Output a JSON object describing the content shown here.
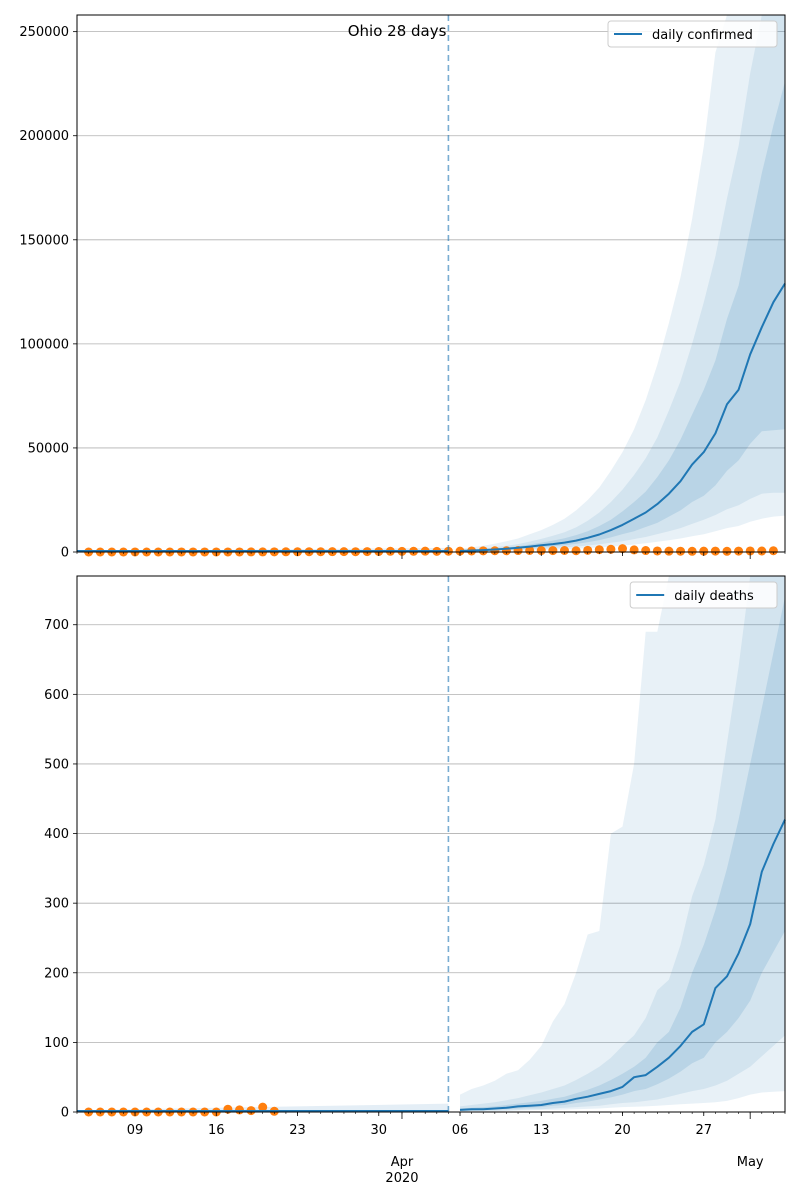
{
  "colors": {
    "model": "#1f77b4",
    "observed": "#ff7f0e",
    "grid": "#b0b0b0"
  },
  "x_axis": {
    "date_ticks": [
      {
        "label": "09",
        "date": "2020-03-09"
      },
      {
        "label": "16",
        "date": "2020-03-16"
      },
      {
        "label": "23",
        "date": "2020-03-23"
      },
      {
        "label": "30",
        "date": "2020-03-30"
      },
      {
        "label": "06",
        "date": "2020-04-06"
      },
      {
        "label": "13",
        "date": "2020-04-13"
      },
      {
        "label": "20",
        "date": "2020-04-20"
      },
      {
        "label": "27",
        "date": "2020-04-27"
      }
    ],
    "month_labels": [
      {
        "label": "Apr",
        "date": "2020-04-01"
      },
      {
        "label": "May",
        "date": "2020-05-01"
      }
    ],
    "year_label": {
      "label": "2020",
      "date": "2020-04-01"
    },
    "range": [
      "2020-03-04",
      "2020-05-04"
    ]
  },
  "chart_data": [
    {
      "type": "line",
      "title": "Ohio 28 days",
      "ylim": [
        0,
        258000
      ],
      "yticks": [
        0,
        50000,
        100000,
        150000,
        200000,
        250000
      ],
      "forecast_start": "2020-04-05",
      "series": [
        {
          "name": "daily confirmed",
          "x": [
            "2020-04-06",
            "2020-04-07",
            "2020-04-08",
            "2020-04-09",
            "2020-04-10",
            "2020-04-11",
            "2020-04-12",
            "2020-04-13",
            "2020-04-14",
            "2020-04-15",
            "2020-04-16",
            "2020-04-17",
            "2020-04-18",
            "2020-04-19",
            "2020-04-20",
            "2020-04-21",
            "2020-04-22",
            "2020-04-23",
            "2020-04-24",
            "2020-04-25",
            "2020-04-26",
            "2020-04-27",
            "2020-04-28",
            "2020-04-29",
            "2020-04-30",
            "2020-05-01",
            "2020-05-02",
            "2020-05-03",
            "2020-05-04"
          ],
          "values": [
            500,
            700,
            900,
            1200,
            1600,
            2000,
            2600,
            3200,
            3800,
            4500,
            5500,
            6800,
            8400,
            10500,
            13000,
            16000,
            19000,
            23000,
            28000,
            34000,
            42000,
            48000,
            57000,
            71000,
            78000,
            95000,
            108000,
            120000,
            129000
          ],
          "bands": [
            {
              "lower": [
                300,
                400,
                500,
                650,
                850,
                1000,
                1300,
                1600,
                1900,
                2200,
                2600,
                3100,
                3700,
                4400,
                5200,
                6200,
                7200,
                8600,
                10000,
                11500,
                13500,
                15500,
                17800,
                20500,
                22500,
                25500,
                28000,
                28500,
                28500
              ],
              "upper": [
                900,
                1300,
                1700,
                2300,
                3000,
                3800,
                5000,
                6300,
                7800,
                9500,
                11800,
                15000,
                19000,
                24000,
                30000,
                37000,
                45000,
                55000,
                68000,
                82000,
                100000,
                120000,
                142000,
                170000,
                195000,
                230000,
                262000,
                262000,
                262000
              ]
            },
            {
              "lower": [
                400,
                550,
                700,
                900,
                1200,
                1500,
                1900,
                2300,
                2700,
                3200,
                3900,
                4700,
                5700,
                7000,
                8600,
                10000,
                12000,
                14000,
                17000,
                20000,
                24000,
                27000,
                32000,
                39000,
                44000,
                52000,
                58000,
                58500,
                59000
              ],
              "upper": [
                700,
                1000,
                1300,
                1700,
                2200,
                2800,
                3600,
                4500,
                5500,
                6600,
                8100,
                10000,
                12500,
                15500,
                19500,
                24000,
                29000,
                36000,
                44000,
                54000,
                66000,
                78000,
                92000,
                112000,
                128000,
                155000,
                182000,
                205000,
                226000
              ]
            }
          ],
          "outer_band": {
            "lower": [
              200,
              250,
              300,
              400,
              500,
              600,
              800,
              1000,
              1200,
              1400,
              1600,
              1900,
              2200,
              2600,
              3100,
              3600,
              4200,
              4900,
              5600,
              6500,
              7600,
              8500,
              10000,
              11500,
              12500,
              14500,
              16000,
              17000,
              17500
            ],
            "upper": [
              1500,
              2200,
              3000,
              4000,
              5200,
              6500,
              8500,
              10500,
              13000,
              16000,
              20000,
              25000,
              31000,
              39000,
              48000,
              59000,
              73000,
              90000,
              110000,
              132000,
              160000,
              195000,
              240000,
              262000,
              262000,
              262000,
              262000,
              262000,
              262000
            ]
          }
        }
      ],
      "observed": {
        "x": [
          "2020-03-05",
          "2020-03-06",
          "2020-03-07",
          "2020-03-08",
          "2020-03-09",
          "2020-03-10",
          "2020-03-11",
          "2020-03-12",
          "2020-03-13",
          "2020-03-14",
          "2020-03-15",
          "2020-03-16",
          "2020-03-17",
          "2020-03-18",
          "2020-03-19",
          "2020-03-20",
          "2020-03-21",
          "2020-03-22",
          "2020-03-23",
          "2020-03-24",
          "2020-03-25",
          "2020-03-26",
          "2020-03-27",
          "2020-03-28",
          "2020-03-29",
          "2020-03-30",
          "2020-03-31",
          "2020-04-01",
          "2020-04-02",
          "2020-04-03",
          "2020-04-04",
          "2020-04-05",
          "2020-04-06",
          "2020-04-07",
          "2020-04-08",
          "2020-04-09",
          "2020-04-10",
          "2020-04-11",
          "2020-04-12",
          "2020-04-13",
          "2020-04-14",
          "2020-04-15",
          "2020-04-16",
          "2020-04-17",
          "2020-04-18",
          "2020-04-19",
          "2020-04-20",
          "2020-04-21",
          "2020-04-22",
          "2020-04-23",
          "2020-04-24",
          "2020-04-25",
          "2020-04-26",
          "2020-04-27",
          "2020-04-28",
          "2020-04-29",
          "2020-04-30",
          "2020-05-01",
          "2020-05-02",
          "2020-05-03"
        ],
        "values": [
          0,
          0,
          0,
          0,
          3,
          0,
          1,
          1,
          8,
          13,
          11,
          17,
          17,
          18,
          31,
          35,
          80,
          105,
          91,
          140,
          120,
          167,
          180,
          150,
          210,
          250,
          350,
          300,
          350,
          400,
          300,
          381,
          420,
          500,
          550,
          600,
          600,
          700,
          750,
          700,
          690,
          720,
          600,
          800,
          1100,
          1300,
          1600,
          1000,
          700,
          500,
          400,
          380,
          350,
          400,
          450,
          350,
          430,
          500,
          480,
          600
        ]
      },
      "legend": {
        "label": "daily confirmed",
        "position": "upper right"
      }
    },
    {
      "type": "line",
      "title": "",
      "ylim": [
        0,
        770
      ],
      "yticks": [
        0,
        100,
        200,
        300,
        400,
        500,
        600,
        700
      ],
      "forecast_start": "2020-04-05",
      "series": [
        {
          "name": "daily deaths",
          "x": [
            "2020-04-06",
            "2020-04-07",
            "2020-04-08",
            "2020-04-09",
            "2020-04-10",
            "2020-04-11",
            "2020-04-12",
            "2020-04-13",
            "2020-04-14",
            "2020-04-15",
            "2020-04-16",
            "2020-04-17",
            "2020-04-18",
            "2020-04-19",
            "2020-04-20",
            "2020-04-21",
            "2020-04-22",
            "2020-04-23",
            "2020-04-24",
            "2020-04-25",
            "2020-04-26",
            "2020-04-27",
            "2020-04-28",
            "2020-04-29",
            "2020-04-30",
            "2020-05-01",
            "2020-05-02",
            "2020-05-03",
            "2020-05-04"
          ],
          "values": [
            3,
            4,
            4,
            5,
            6,
            8,
            9,
            10,
            13,
            15,
            19,
            22,
            26,
            30,
            36,
            50,
            53,
            65,
            78,
            95,
            115,
            126,
            178,
            195,
            228,
            270,
            345,
            385,
            420
          ],
          "bands": [
            {
              "lower": [
                1,
                1.5,
                2,
                2,
                2.5,
                3,
                4,
                4,
                5,
                6,
                7,
                8,
                9,
                11,
                13,
                14,
                16,
                18,
                22,
                26,
                30,
                33,
                38,
                45,
                55,
                65,
                80,
                95,
                110
              ],
              "upper": [
                8,
                10,
                12,
                14,
                17,
                20,
                24,
                28,
                33,
                38,
                46,
                55,
                65,
                78,
                95,
                110,
                135,
                175,
                190,
                240,
                310,
                355,
                420,
                530,
                640,
                770,
                770,
                770,
                770
              ]
            },
            {
              "lower": [
                2,
                2.5,
                3,
                3.5,
                4,
                5,
                6,
                7,
                9,
                10,
                13,
                15,
                18,
                21,
                25,
                30,
                33,
                40,
                48,
                58,
                70,
                78,
                100,
                115,
                135,
                160,
                200,
                230,
                260
              ],
              "upper": [
                5,
                6,
                7,
                8,
                10,
                12,
                14,
                16,
                19,
                22,
                27,
                32,
                38,
                46,
                55,
                65,
                78,
                100,
                115,
                150,
                200,
                240,
                290,
                350,
                420,
                500,
                580,
                660,
                740
              ]
            }
          ],
          "outer_band": {
            "lower": [
              0.5,
              1,
              1,
              1.2,
              1.5,
              2,
              2.5,
              3,
              3,
              3.5,
              4,
              4.5,
              5,
              6,
              7,
              7.5,
              8,
              9,
              10,
              11,
              12,
              13,
              14,
              16,
              20,
              25,
              28,
              29,
              30
            ],
            "upper": [
              25,
              33,
              38,
              45,
              55,
              60,
              75,
              95,
              130,
              155,
              200,
              255,
              260,
              400,
              410,
              500,
              690,
              690,
              770,
              770,
              770,
              770,
              770,
              770,
              770,
              770,
              770,
              770,
              770
            ]
          }
        }
      ],
      "observed": {
        "x": [
          "2020-03-05",
          "2020-03-06",
          "2020-03-07",
          "2020-03-08",
          "2020-03-09",
          "2020-03-10",
          "2020-03-11",
          "2020-03-12",
          "2020-03-13",
          "2020-03-14",
          "2020-03-15",
          "2020-03-16",
          "2020-03-17",
          "2020-03-18",
          "2020-03-19",
          "2020-03-20",
          "2020-03-21"
        ],
        "values": [
          0,
          0,
          0,
          0,
          0,
          0,
          0,
          0,
          0,
          0,
          0,
          0,
          4,
          3,
          2,
          7,
          1
        ]
      },
      "legend": {
        "label": "daily deaths",
        "position": "upper right"
      }
    }
  ]
}
